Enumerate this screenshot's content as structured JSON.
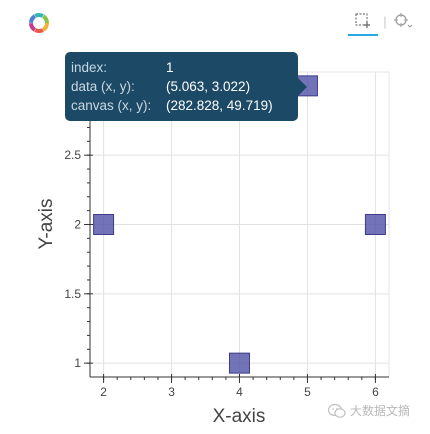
{
  "toolbar": {
    "tools": [
      {
        "name": "box-zoom",
        "icon": "box-zoom-icon",
        "active": true
      },
      {
        "name": "hover",
        "icon": "crosshair-icon",
        "active": false
      }
    ],
    "separator": "|"
  },
  "tooltip": {
    "rows": [
      {
        "key": "index:",
        "value": "1"
      },
      {
        "key": "data (x, y):",
        "value": "(5.063, 3.022)"
      },
      {
        "key": "canvas (x, y):",
        "value": "(282.828, 49.719)"
      }
    ]
  },
  "watermark": {
    "text": "大数据文摘",
    "icon": "wechat-icon"
  },
  "chart_data": {
    "type": "scatter",
    "marker": "square",
    "marker_color": "#5454a8",
    "x": [
      2,
      5,
      6,
      4
    ],
    "y": [
      2,
      3,
      2,
      1
    ],
    "xlabel": "X-axis",
    "ylabel": "Y-axis",
    "xlim": [
      1.8,
      6.2
    ],
    "ylim": [
      0.9,
      3.1
    ],
    "xticks": [
      "2",
      "3",
      "4",
      "5",
      "6"
    ],
    "yticks": [
      "1",
      "1.5",
      "2",
      "2.5"
    ],
    "grid": true
  }
}
